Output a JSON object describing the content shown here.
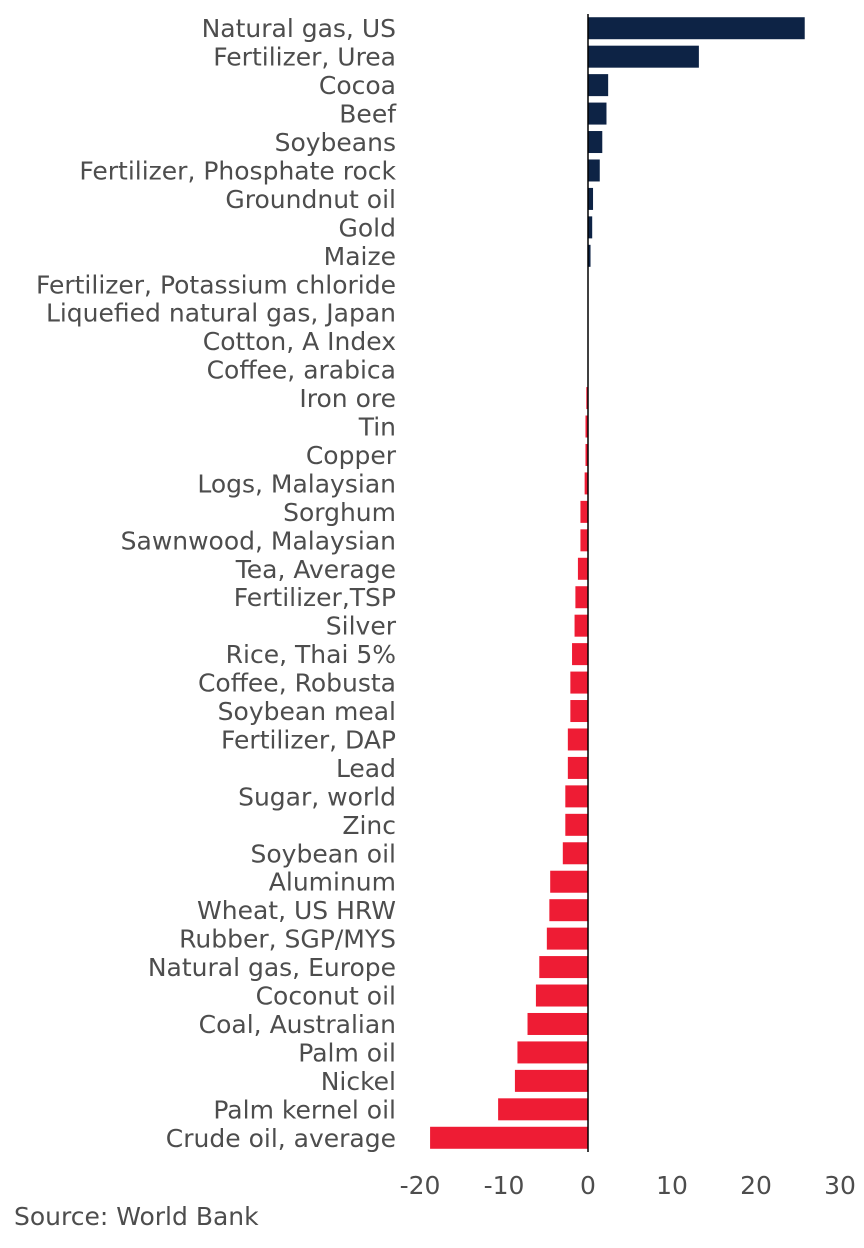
{
  "chart_data": {
    "type": "bar",
    "orientation": "horizontal",
    "categories": [
      "Natural gas, US",
      "Fertilizer, Urea",
      "Cocoa",
      "Beef",
      "Soybeans",
      "Fertilizer, Phosphate rock",
      "Groundnut oil",
      "Gold",
      "Maize",
      "Fertilizer, Potassium chloride",
      "Liquefied natural gas, Japan",
      "Cotton, A Index",
      "Coffee, arabica",
      "Iron ore",
      "Tin",
      "Copper",
      "Logs, Malaysian",
      "Sorghum",
      "Sawnwood, Malaysian",
      "Tea, Average",
      "Fertilizer,TSP",
      "Silver",
      "Rice, Thai 5%",
      "Coffee, Robusta",
      "Soybean meal",
      "Fertilizer, DAP",
      "Lead",
      "Sugar, world",
      "Zinc",
      "Soybean oil",
      "Aluminum",
      "Wheat, US HRW",
      "Rubber, SGP/MYS",
      "Natural gas, Europe",
      "Coconut oil",
      "Coal, Australian",
      "Palm oil",
      "Nickel",
      "Palm kernel oil",
      "Crude oil, average"
    ],
    "values": [
      25.8,
      13.2,
      2.4,
      2.2,
      1.7,
      1.4,
      0.6,
      0.5,
      0.3,
      0.0,
      0.0,
      0.0,
      0.0,
      -0.2,
      -0.3,
      -0.3,
      -0.4,
      -0.9,
      -0.9,
      -1.2,
      -1.5,
      -1.6,
      -1.9,
      -2.1,
      -2.1,
      -2.4,
      -2.4,
      -2.7,
      -2.7,
      -3.0,
      -4.5,
      -4.6,
      -4.9,
      -5.8,
      -6.2,
      -7.2,
      -8.4,
      -8.7,
      -10.7,
      -18.8
    ],
    "xlim": [
      -20,
      30
    ],
    "x_ticks": [
      "-20",
      "-10",
      "0",
      "10",
      "20",
      "30"
    ],
    "colors": {
      "positive": "#0d2345",
      "negative": "#ee1c34",
      "axis": "#000000"
    },
    "grid": false
  },
  "footer": {
    "source": "Source: World Bank"
  }
}
